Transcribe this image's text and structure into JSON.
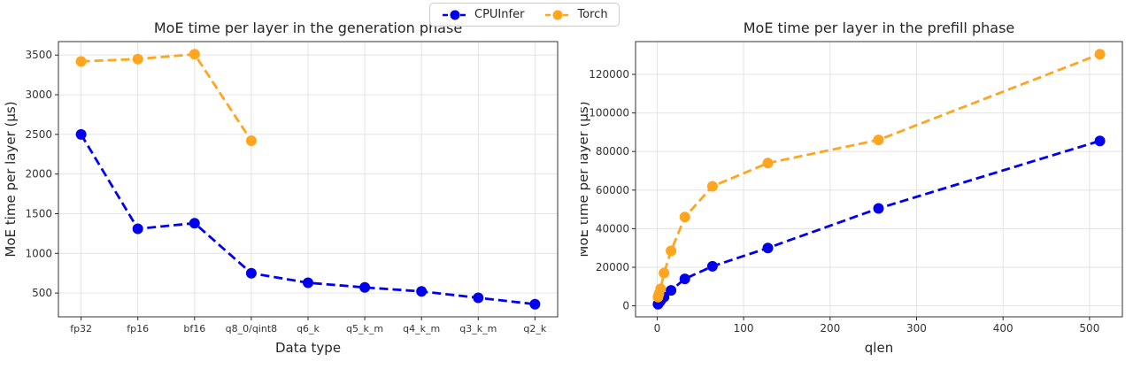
{
  "figure": {
    "background": "#ffffff",
    "grid_color": "#e0e0e0",
    "text_color": "#262626"
  },
  "chart_data": [
    {
      "type": "line",
      "title": "MoE time per layer in the generation phase",
      "xlabel": "Data type",
      "ylabel": "MoE time per layer (μs)",
      "x_is_categorical": true,
      "categories": [
        "fp32",
        "fp16",
        "bf16",
        "q8_0/qint8",
        "q6_k",
        "q5_k_m",
        "q4_k_m",
        "q3_k_m",
        "q2_k"
      ],
      "xlim": [
        -0.4,
        8.4
      ],
      "ylim": [
        200,
        3670
      ],
      "yticks": [
        500,
        1000,
        1500,
        2000,
        2500,
        3000,
        3500
      ],
      "grid": true,
      "line_style": "dashed",
      "legend_position": "top-center-of-figure",
      "series": [
        {
          "name": "CPUInfer",
          "color": "#0000ee",
          "x": [
            0,
            1,
            2,
            3,
            4,
            5,
            6,
            7,
            8
          ],
          "values": [
            2500,
            1310,
            1380,
            750,
            630,
            570,
            520,
            440,
            360
          ]
        },
        {
          "name": "Torch",
          "color": "#ffa51e",
          "x": [
            0,
            1,
            2,
            3
          ],
          "values": [
            3420,
            3450,
            3510,
            2420
          ]
        }
      ]
    },
    {
      "type": "line",
      "title": "MoE time per layer in the prefill phase",
      "xlabel": "qlen",
      "ylabel": "MoE time per layer (μs)",
      "x_is_categorical": false,
      "xlim": [
        -25,
        538
      ],
      "ylim": [
        -5700,
        137000
      ],
      "xticks": [
        0,
        100,
        200,
        300,
        400,
        500
      ],
      "yticks": [
        0,
        20000,
        40000,
        60000,
        80000,
        100000,
        120000
      ],
      "grid": true,
      "line_style": "dashed",
      "series": [
        {
          "name": "CPUInfer",
          "color": "#0000ee",
          "x": [
            1,
            2,
            4,
            8,
            16,
            32,
            64,
            128,
            256,
            512
          ],
          "values": [
            800,
            1500,
            2600,
            4600,
            8000,
            14000,
            20500,
            30000,
            50500,
            85500
          ]
        },
        {
          "name": "Torch",
          "color": "#ffa51e",
          "x": [
            1,
            2,
            4,
            8,
            16,
            32,
            64,
            128,
            256,
            512
          ],
          "values": [
            4500,
            6200,
            8800,
            17000,
            28500,
            46000,
            62000,
            74000,
            86000,
            130500
          ]
        }
      ]
    }
  ]
}
